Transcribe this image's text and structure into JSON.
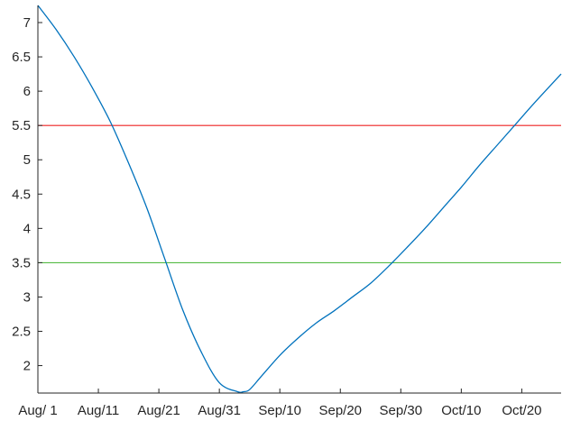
{
  "chart_data": {
    "type": "line",
    "title": "",
    "xlabel": "",
    "ylabel": "",
    "x_ticks": [
      "Aug/ 1",
      "Aug/11",
      "Aug/21",
      "Aug/31",
      "Sep/10",
      "Sep/20",
      "Sep/30",
      "Oct/10",
      "Oct/20"
    ],
    "y_ticks": [
      "2",
      "2.5",
      "3",
      "3.5",
      "4",
      "4.5",
      "5",
      "5.5",
      "6",
      "6.5",
      "7"
    ],
    "xlim_days": [
      0,
      86.5
    ],
    "ylim": [
      1.6,
      7.25
    ],
    "grid": false,
    "legend": "none",
    "series": [
      {
        "color": "#0072bd",
        "x_days": [
          0,
          3,
          6,
          9,
          12,
          15,
          18,
          21,
          24,
          27,
          30,
          33,
          34,
          35,
          37,
          40,
          43,
          46,
          49,
          52,
          55,
          58,
          61,
          64,
          67,
          70,
          73,
          76,
          79,
          82,
          86.5
        ],
        "values": [
          7.25,
          6.9,
          6.5,
          6.05,
          5.55,
          4.95,
          4.3,
          3.55,
          2.8,
          2.2,
          1.75,
          1.62,
          1.62,
          1.65,
          1.85,
          2.15,
          2.4,
          2.62,
          2.8,
          3.0,
          3.2,
          3.45,
          3.72,
          4.0,
          4.3,
          4.6,
          4.92,
          5.22,
          5.52,
          5.82,
          6.25
        ]
      }
    ],
    "reference_lines": [
      {
        "y": 5.5,
        "color": "#ee2222"
      },
      {
        "y": 3.5,
        "color": "#55bb44"
      }
    ]
  }
}
